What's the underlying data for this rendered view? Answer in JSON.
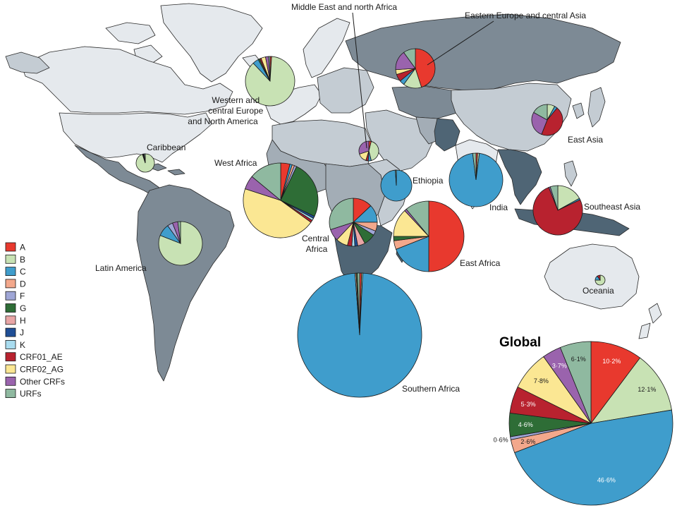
{
  "legend": [
    {
      "name": "A",
      "color": "#e8392e"
    },
    {
      "name": "B",
      "color": "#c8e2b4"
    },
    {
      "name": "C",
      "color": "#3f9dcc"
    },
    {
      "name": "D",
      "color": "#f3a88c"
    },
    {
      "name": "F",
      "color": "#9fa6d6"
    },
    {
      "name": "G",
      "color": "#2e6d36"
    },
    {
      "name": "H",
      "color": "#e9a6a6"
    },
    {
      "name": "J",
      "color": "#1f4e96"
    },
    {
      "name": "K",
      "color": "#a9dcef"
    },
    {
      "name": "CRF01_AE",
      "color": "#b8222f"
    },
    {
      "name": "CRF02_AG",
      "color": "#fbe793"
    },
    {
      "name": "Other CRFs",
      "color": "#9a63ad"
    },
    {
      "name": "URFs",
      "color": "#8fb9a0"
    }
  ],
  "map_colors": {
    "light": "#e5e9ed",
    "mid_light": "#c4ccd3",
    "mid": "#a3adb6",
    "dark": "#7d8a95",
    "darkest": "#4f6575",
    "border": "#2b2b2b"
  },
  "regions": [
    {
      "id": "western-europe-na",
      "label": "Western and\ncentral Europe\nand North America",
      "values": {
        "B": 87,
        "C": 4,
        "A": 1,
        "CRF02_AG": 3,
        "Other CRFs": 2,
        "URFs": 1,
        "G": 1,
        "CRF01_AE": 1
      }
    },
    {
      "id": "caribbean",
      "label": "Caribbean",
      "values": {
        "B": 95,
        "URFs": 2,
        "C": 1,
        "CRF01_AE": 1,
        "J": 1
      }
    },
    {
      "id": "latin-america",
      "label": "Latin America",
      "values": {
        "B": 81,
        "C": 9,
        "F": 4,
        "Other CRFs": 4,
        "URFs": 2
      }
    },
    {
      "id": "west-africa",
      "label": "West Africa",
      "values": {
        "CRF02_AG": 45,
        "G": 25,
        "URFs": 14,
        "A": 4,
        "Other CRFs": 6,
        "C": 1,
        "D": 1,
        "F": 1,
        "J": 1,
        "K": 1,
        "CRF01_AE": 1
      }
    },
    {
      "id": "central-africa",
      "label": "Central\nAfrica",
      "values": {
        "A": 13,
        "C": 12,
        "CRF02_AG": 8,
        "D": 6,
        "F": 3,
        "G": 8,
        "H": 5,
        "J": 2,
        "K": 2,
        "CRF01_AE": 3,
        "Other CRFs": 8,
        "URFs": 30
      }
    },
    {
      "id": "middle-east-north-africa",
      "label": "Middle East and north Africa",
      "values": {
        "B": 42,
        "CRF02_AG": 15,
        "Other CRFs": 30,
        "C": 5,
        "A": 4,
        "CRF01_AE": 4
      }
    },
    {
      "id": "ethiopia",
      "label": "Ethiopia",
      "values": {
        "C": 99,
        "URFs": 1
      }
    },
    {
      "id": "east-africa",
      "label": "East Africa",
      "values": {
        "A": 50,
        "C": 19,
        "CRF02_AG": 13,
        "D": 4,
        "URFs": 11,
        "Other CRFs": 1,
        "G": 2
      }
    },
    {
      "id": "southern-africa",
      "label": "Southern Africa",
      "values": {
        "C": 98,
        "A": 0.5,
        "B": 0.3,
        "D": 0.3,
        "G": 0.3,
        "URFs": 0.6
      }
    },
    {
      "id": "eastern-europe-central-asia",
      "label": "Eastern Europe and central Asia",
      "values": {
        "A": 45,
        "B": 15,
        "C": 4,
        "CRF02_AG": 4,
        "Other CRFs": 16,
        "URFs": 10,
        "CRF01_AE": 6
      }
    },
    {
      "id": "india",
      "label": "India",
      "values": {
        "C": 96,
        "A": 1,
        "B": 1,
        "URFs": 2
      }
    },
    {
      "id": "east-asia",
      "label": "East Asia",
      "values": {
        "B": 8,
        "C": 3,
        "CRF01_AE": 45,
        "Other CRFs": 27,
        "URFs": 17
      }
    },
    {
      "id": "southeast-asia",
      "label": "Southeast Asia",
      "values": {
        "CRF01_AE": 76,
        "B": 17,
        "C": 1,
        "URFs": 5,
        "Other CRFs": 1
      }
    },
    {
      "id": "oceania",
      "label": "Oceania",
      "values": {
        "B": 75,
        "C": 15,
        "CRF01_AE": 10
      }
    }
  ],
  "global": {
    "title": "Global",
    "slices": [
      {
        "name": "A",
        "value": 10.2,
        "label": "10·2%"
      },
      {
        "name": "B",
        "value": 12.1,
        "label": "12·1%"
      },
      {
        "name": "C",
        "value": 46.6,
        "label": "46·6%"
      },
      {
        "name": "D",
        "value": 2.6,
        "label": "2·6%"
      },
      {
        "name": "F",
        "value": 0.6,
        "label": "0·6%"
      },
      {
        "name": "G",
        "value": 4.6,
        "label": "4·6%"
      },
      {
        "name": "CRF01_AE",
        "value": 5.3,
        "label": "5·3%"
      },
      {
        "name": "CRF02_AG",
        "value": 7.8,
        "label": "7·8%"
      },
      {
        "name": "Other CRFs",
        "value": 3.7,
        "label": "3·7%"
      },
      {
        "name": "URFs",
        "value": 6.1,
        "label": "6·1%"
      }
    ]
  }
}
